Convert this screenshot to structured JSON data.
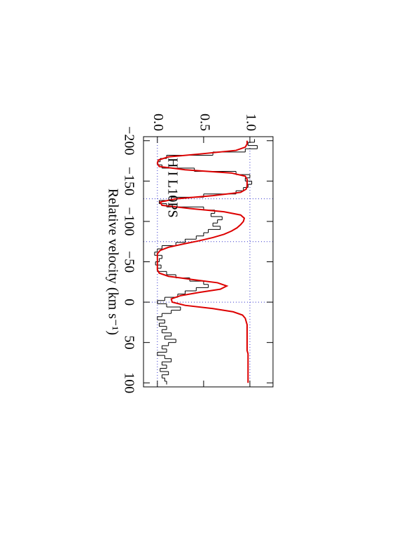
{
  "chart_data": {
    "type": "line",
    "annotation": "H I L10PS",
    "xlabel": "Relative velocity (km s⁻¹)",
    "xlim": [
      -205,
      105
    ],
    "ylim": [
      -0.15,
      1.25
    ],
    "xticks": [
      {
        "value": -200,
        "label": "−200"
      },
      {
        "value": -150,
        "label": "−150"
      },
      {
        "value": -100,
        "label": "−100"
      },
      {
        "value": -50,
        "label": "−50"
      },
      0,
      50,
      100
    ],
    "yticks": [
      {
        "value": 0,
        "label": "0.0"
      },
      {
        "value": 0.5,
        "label": "0.5"
      },
      {
        "value": 1,
        "label": "1.0"
      }
    ],
    "vlines": [
      -128,
      -75,
      0
    ],
    "hlines": [
      0,
      1
    ],
    "guide_color": "#3333cc",
    "x": [
      -200,
      -196,
      -192,
      -188,
      -184,
      -180,
      -176,
      -172,
      -168,
      -164,
      -160,
      -156,
      -152,
      -148,
      -144,
      -140,
      -136,
      -132,
      -128,
      -124,
      -120,
      -116,
      -112,
      -108,
      -104,
      -100,
      -96,
      -92,
      -88,
      -84,
      -80,
      -76,
      -72,
      -68,
      -64,
      -60,
      -56,
      -52,
      -48,
      -44,
      -40,
      -36,
      -32,
      -28,
      -24,
      -20,
      -16,
      -12,
      -8,
      -4,
      0,
      4,
      8,
      12,
      16,
      20,
      24,
      28,
      32,
      36,
      40,
      44,
      48,
      52,
      56,
      60,
      64,
      68,
      72,
      76,
      80,
      84,
      88,
      92,
      96,
      100
    ],
    "series": [
      {
        "color": "#000000",
        "drawstyle": "steps",
        "values": [
          1.05,
          0.98,
          1.08,
          0.95,
          0.6,
          0.1,
          0.03,
          0.0,
          0.05,
          0.4,
          0.85,
          1.0,
          0.95,
          1.02,
          0.98,
          0.93,
          0.85,
          0.5,
          0.15,
          0.02,
          0.1,
          0.5,
          0.62,
          0.58,
          0.7,
          0.65,
          0.6,
          0.68,
          0.55,
          0.5,
          0.42,
          0.3,
          0.2,
          0.05,
          0.0,
          -0.03,
          0.05,
          0.02,
          -0.02,
          0.04,
          0.0,
          0.1,
          0.2,
          0.35,
          0.5,
          0.55,
          0.42,
          0.3,
          0.22,
          0.08,
          0.0,
          0.1,
          0.25,
          0.15,
          0.05,
          0.0,
          0.08,
          0.02,
          0.1,
          0.05,
          0.15,
          0.08,
          0.2,
          0.12,
          0.05,
          0.1,
          0.0,
          0.08,
          0.15,
          0.05,
          0.1,
          0.03,
          0.12,
          0.05,
          0.08,
          0.1
        ]
      },
      {
        "color": "#dd0000",
        "drawstyle": "line",
        "values": [
          0.97,
          0.97,
          0.95,
          0.85,
          0.5,
          0.12,
          0.01,
          0.0,
          0.02,
          0.3,
          0.8,
          0.95,
          0.97,
          0.97,
          0.97,
          0.96,
          0.9,
          0.6,
          0.2,
          0.03,
          0.05,
          0.35,
          0.72,
          0.9,
          0.94,
          0.93,
          0.9,
          0.86,
          0.8,
          0.72,
          0.6,
          0.45,
          0.28,
          0.12,
          0.03,
          0.0,
          0.0,
          0.0,
          0.0,
          0.0,
          0.0,
          0.02,
          0.12,
          0.38,
          0.65,
          0.75,
          0.68,
          0.45,
          0.25,
          0.15,
          0.16,
          0.3,
          0.6,
          0.82,
          0.92,
          0.95,
          0.96,
          0.97,
          0.97,
          0.97,
          0.97,
          0.97,
          0.97,
          0.97,
          0.97,
          0.97,
          0.98,
          0.98,
          0.98,
          0.98,
          0.98,
          0.98,
          0.98,
          0.98,
          0.98,
          0.98
        ]
      }
    ]
  }
}
